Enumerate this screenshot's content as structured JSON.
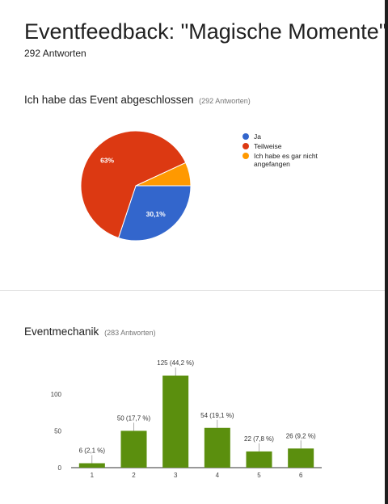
{
  "header": {
    "title": "Eventfeedback: \"Magische Momente\"",
    "responses": "292 Antworten"
  },
  "chart_data": [
    {
      "type": "pie",
      "title": "Ich habe das Event abgeschlossen",
      "subtitle": "(292 Antworten)",
      "legend_position": "right",
      "slices": [
        {
          "label": "Ja",
          "percent": 30.1,
          "display": "30,1%",
          "color": "#3366cc"
        },
        {
          "label": "Teilweise",
          "percent": 63,
          "display": "63%",
          "color": "#dc3912"
        },
        {
          "label": "Ich habe es gar nicht angefangen",
          "percent": 6.9,
          "display": "",
          "color": "#ff9900"
        }
      ]
    },
    {
      "type": "bar",
      "title": "Eventmechanik",
      "subtitle": "(283 Antworten)",
      "categories": [
        "1",
        "2",
        "3",
        "4",
        "5",
        "6"
      ],
      "values": [
        6,
        50,
        125,
        54,
        22,
        26
      ],
      "data_labels": [
        "6 (2,1 %)",
        "50 (17,7 %)",
        "125 (44,2 %)",
        "54 (19,1 %)",
        "22 (7,8 %)",
        "26 (9,2 %)"
      ],
      "yticks": [
        0,
        50,
        100
      ],
      "ylim": [
        0,
        125
      ],
      "color": "#5b8f0e"
    }
  ]
}
